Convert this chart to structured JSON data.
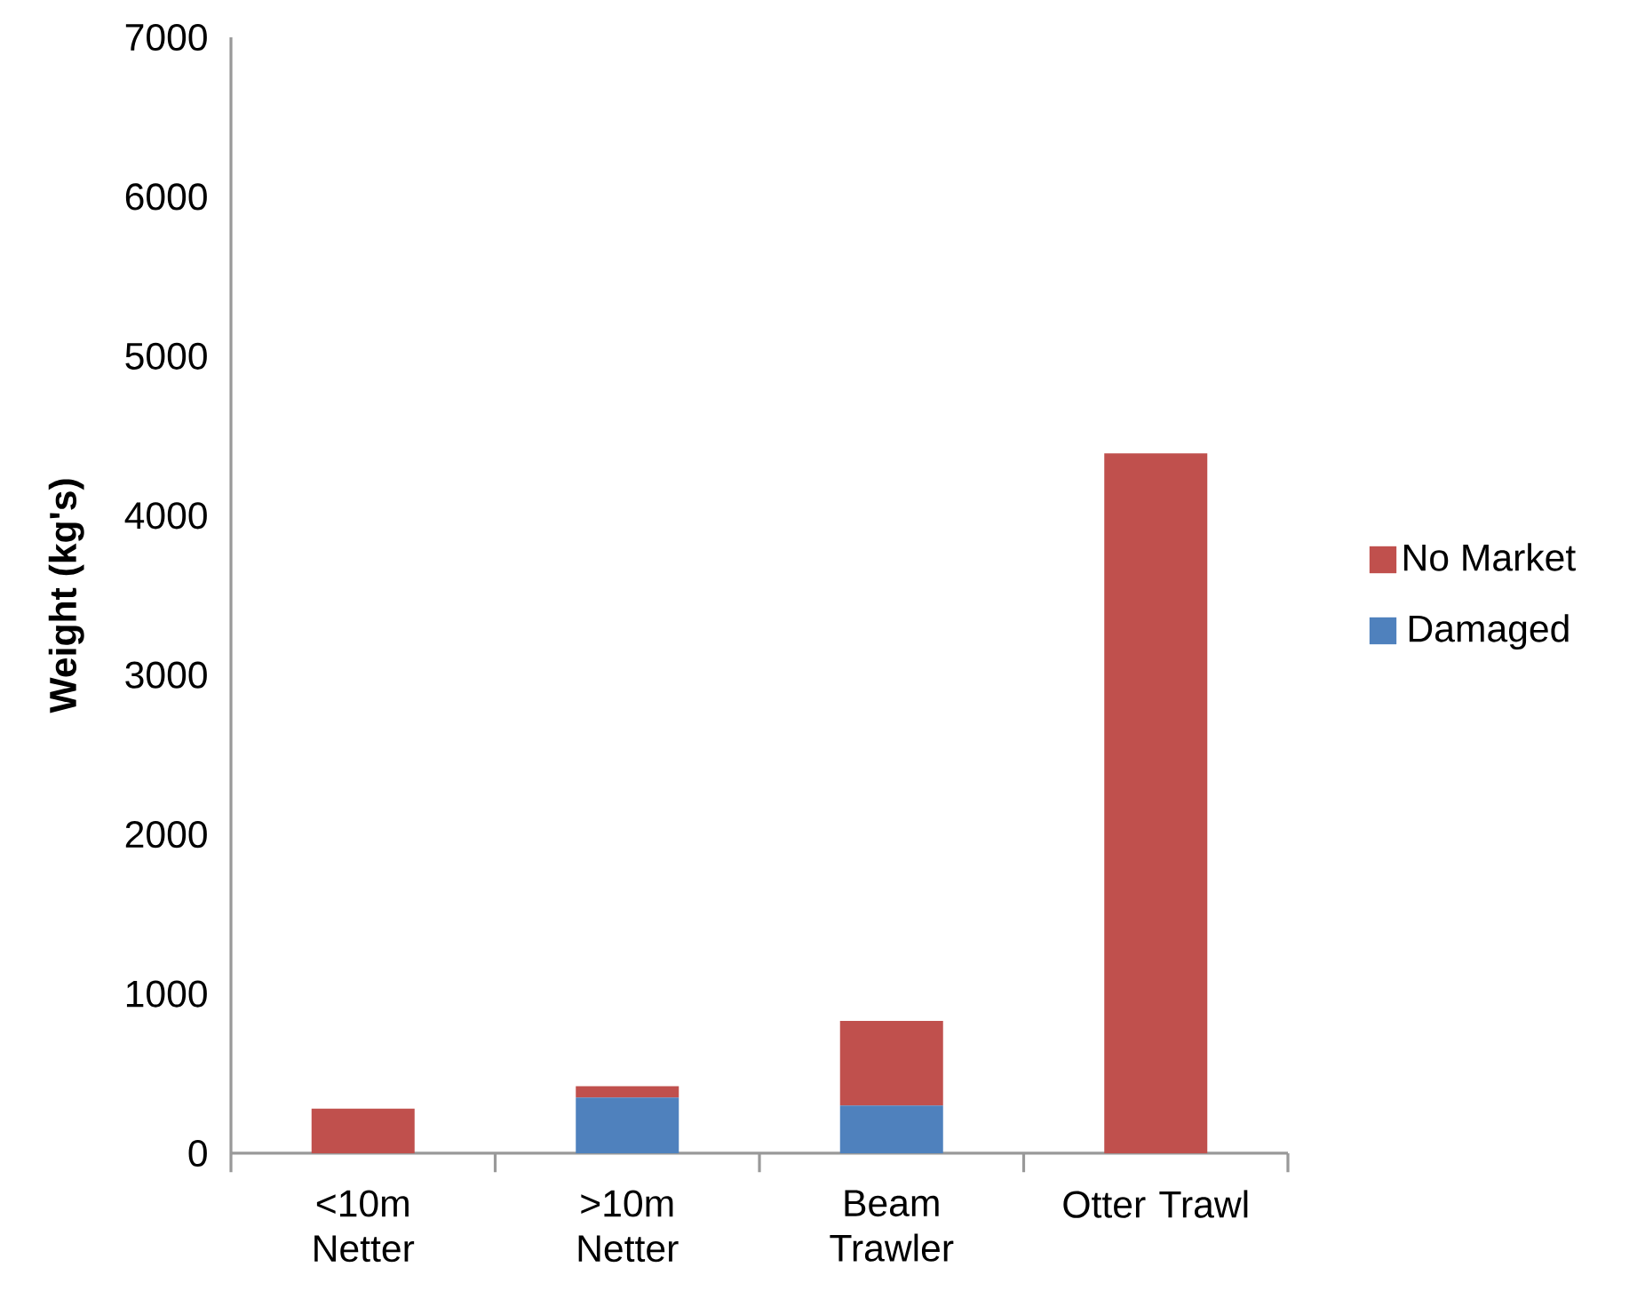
{
  "chart_data": {
    "type": "bar",
    "stacked": true,
    "ylabel": "Weight (kg's)",
    "categories": [
      "<10m Netter",
      ">10m Netter",
      "Beam Trawler",
      "Otter Trawl"
    ],
    "series": [
      {
        "name": "Damaged",
        "color": "#4f81bd",
        "values": [
          0,
          350,
          300,
          0
        ]
      },
      {
        "name": "No Market",
        "color": "#c0504d",
        "values": [
          280,
          70,
          530,
          4390
        ]
      }
    ],
    "ylim": [
      0,
      7000
    ],
    "yticks": [
      0,
      1000,
      2000,
      3000,
      4000,
      5000,
      6000,
      7000
    ],
    "legend": "right",
    "grid": false
  }
}
